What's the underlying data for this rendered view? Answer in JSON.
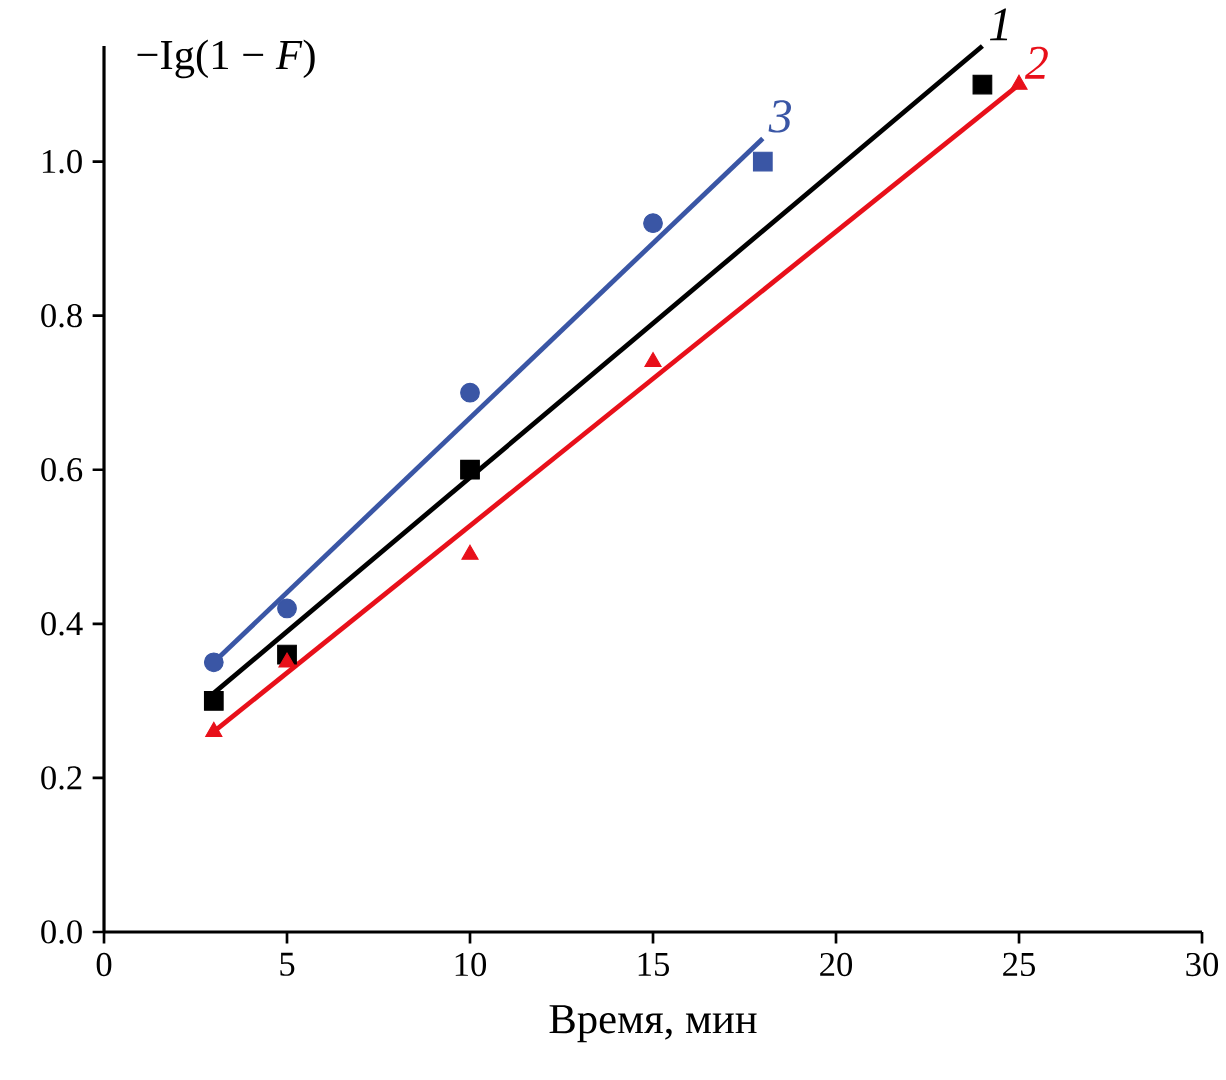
{
  "chart_data": {
    "type": "scatter",
    "title": "−Ig(1 − *F*)",
    "xlabel": "Время, мин",
    "xlim": [
      0,
      30
    ],
    "xticks": [
      0,
      5,
      10,
      15,
      20,
      25,
      30
    ],
    "ylim": [
      0,
      1.15
    ],
    "yticks": [
      {
        "value": 0,
        "label": "0.0"
      },
      {
        "value": 0.2,
        "label": "0.2"
      },
      {
        "value": 0.4,
        "label": "0.4"
      },
      {
        "value": 0.6,
        "label": "0.6"
      },
      {
        "value": 0.8,
        "label": "0.8"
      },
      {
        "value": 1.0,
        "label": "1.0"
      }
    ],
    "grid": false,
    "series": [
      {
        "marker": "square",
        "color": "#000000",
        "x": [
          3,
          5,
          10,
          24
        ],
        "values": [
          0.3,
          0.36,
          0.6,
          1.1
        ]
      },
      {
        "marker": "triangle",
        "color": "#e8101a",
        "x": [
          3,
          5,
          10,
          15,
          25
        ],
        "values": [
          0.26,
          0.35,
          0.49,
          0.74,
          1.1
        ]
      },
      {
        "marker": "circle",
        "color": "#3a56a5",
        "x": [
          3,
          5,
          10,
          15
        ],
        "values": [
          0.35,
          0.42,
          0.7,
          0.92
        ]
      },
      {
        "marker": "square",
        "color": "#3a56a5",
        "x": [
          18
        ],
        "values": [
          1.0
        ]
      },
      {
        "type": "line",
        "marker": "none",
        "name": "1",
        "color": "#000000",
        "x": [
          3,
          24
        ],
        "values": [
          0.31,
          1.15
        ]
      },
      {
        "type": "line",
        "marker": "none",
        "name": "2",
        "color": "#e8101a",
        "x": [
          3,
          25
        ],
        "values": [
          0.26,
          1.1
        ]
      },
      {
        "type": "line",
        "marker": "none",
        "name": "3",
        "color": "#3a56a5",
        "x": [
          3,
          18
        ],
        "values": [
          0.35,
          1.03
        ]
      }
    ]
  }
}
